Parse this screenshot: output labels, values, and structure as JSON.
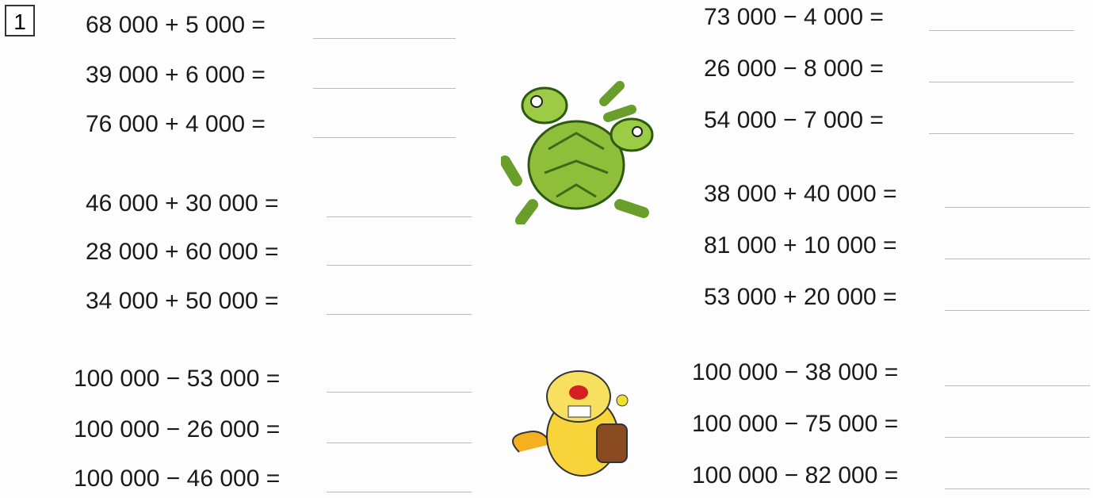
{
  "exercise_number": "1",
  "left": [
    [
      "68 000 + 5 000 =",
      "39 000 + 6 000 =",
      "76 000 + 4 000 ="
    ],
    [
      "46 000 + 30 000 =",
      "28 000 + 60 000 =",
      "34 000 + 50 000 ="
    ],
    [
      "100 000 − 53 000 =",
      "100 000 − 26 000 =",
      "100 000 − 46 000 ="
    ]
  ],
  "right": [
    [
      "73 000 − 4 000 =",
      "26 000 − 8 000 =",
      "54 000 − 7 000 ="
    ],
    [
      "38 000 + 40 000 =",
      "81 000 + 10 000 =",
      "53 000 + 20 000 ="
    ],
    [
      "100 000 − 38 000 =",
      "100 000 − 75 000 =",
      "100 000 − 82 000 ="
    ]
  ]
}
